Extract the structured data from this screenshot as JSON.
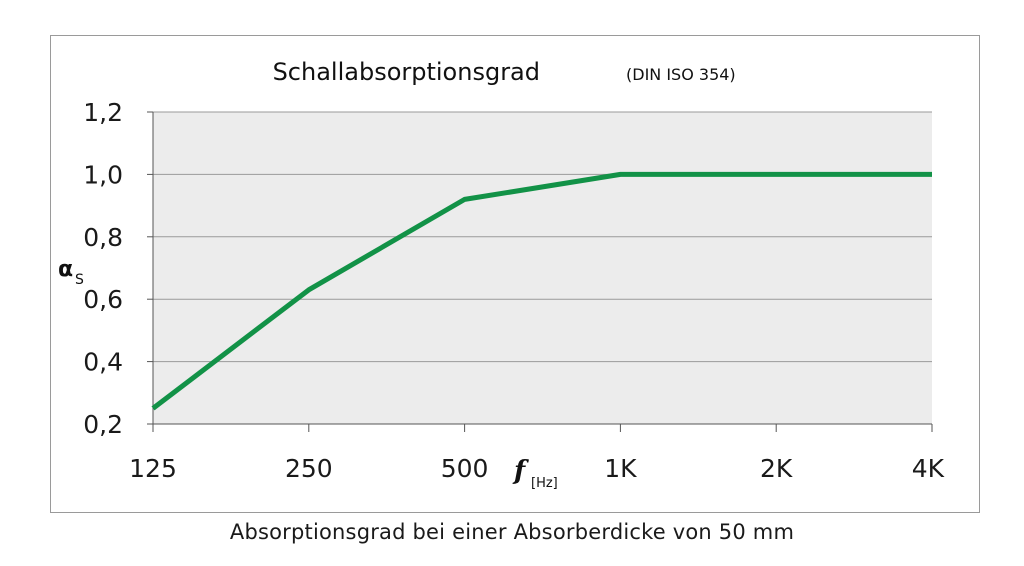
{
  "caption": "Absorptionsgrad bei einer Absorberdicke von 50 mm",
  "colors": {
    "plot_bg": "#ececec",
    "line": "#129247",
    "grid": "#9a9a9a"
  },
  "chart_data": {
    "type": "line",
    "title": "Schallabsorptionsgrad",
    "subtitle": "(DIN ISO 354)",
    "ylabel": "α",
    "ylabel_sub": "S",
    "xlabel": "f",
    "xlabel_sub": "[Hz]",
    "categories": [
      "125",
      "250",
      "500",
      "1K",
      "2K",
      "4K"
    ],
    "values": [
      0.25,
      0.63,
      0.92,
      1.0,
      1.0,
      1.0
    ],
    "ylim": [
      0.2,
      1.2
    ],
    "yticks": [
      "0,2",
      "0,4",
      "0,6",
      "0,8",
      "1,0",
      "1,2"
    ],
    "grid": true,
    "legend": "none"
  }
}
